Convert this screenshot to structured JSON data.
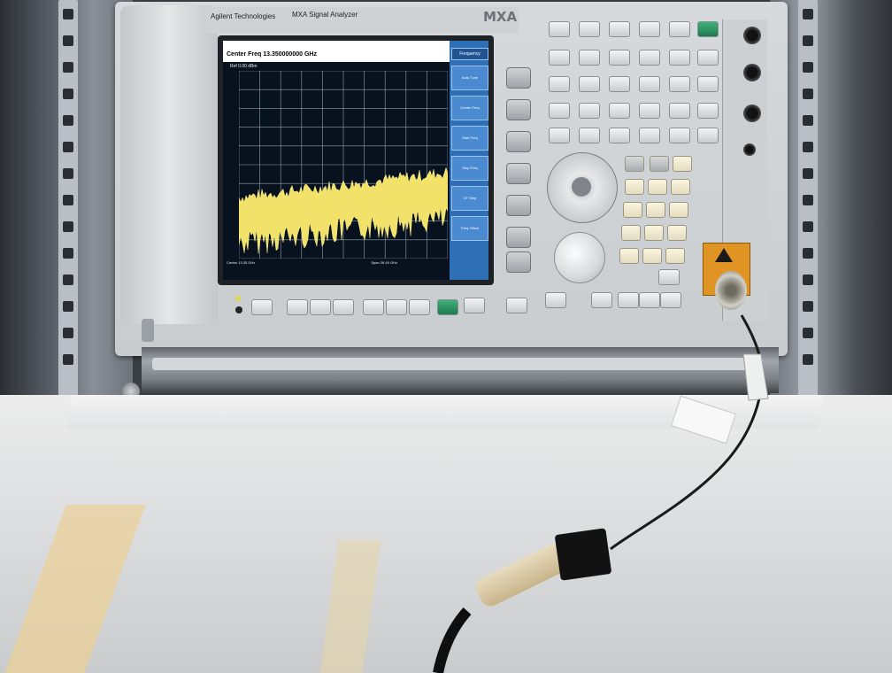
{
  "scene": "photo",
  "instrument": {
    "brand": "Agilent Technologies",
    "model": "MXA Signal Analyzer",
    "logo": "MXA"
  },
  "screen": {
    "center_freq_banner": "Center Freq 13.350000000 GHz",
    "menu_title": "Frequency",
    "softkeys": [
      "Auto Tune",
      "Center Freq",
      "Start Freq",
      "Stop Freq",
      "CF Step",
      "Freq Offset"
    ],
    "ref_level": "Ref 0.00 dBm",
    "bottom_left": "Center 13.35 GHz",
    "bottom_right": "Span 26.49 GHz",
    "trace_color": "#f2e26a",
    "grid_color": "#8fa1b3"
  },
  "colors": {
    "instrument_body": "#d3d6d8",
    "screen_bezel": "#1e2226",
    "menu_panel": "#2f6fb5",
    "foam": "#e6e7e8",
    "warning_label": "#e09424"
  }
}
